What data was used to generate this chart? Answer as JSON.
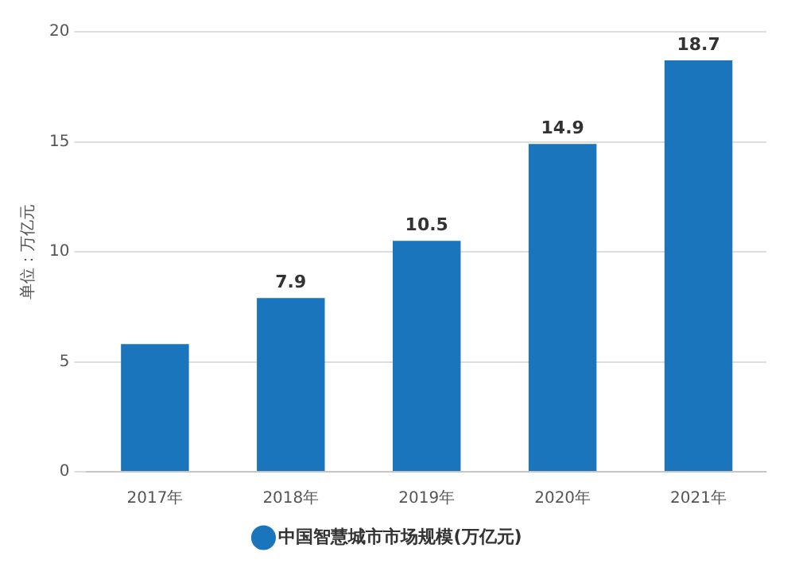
{
  "chart_data": {
    "type": "bar",
    "ylabel": "单位：万亿元",
    "categories": [
      "2017年",
      "2018年",
      "2019年",
      "2020年",
      "2021年"
    ],
    "series": [
      {
        "name": "中国智慧城市市场规模(万亿元)",
        "color": "#1a75bc",
        "values": [
          5.8,
          7.9,
          10.5,
          14.9,
          18.7
        ],
        "value_labels": [
          null,
          "7.9",
          "10.5",
          "14.9",
          "18.7"
        ]
      }
    ],
    "ylim": [
      0,
      20
    ],
    "yticks": [
      0,
      5,
      10,
      15,
      20
    ],
    "grid": "y",
    "legend": "bottom"
  }
}
